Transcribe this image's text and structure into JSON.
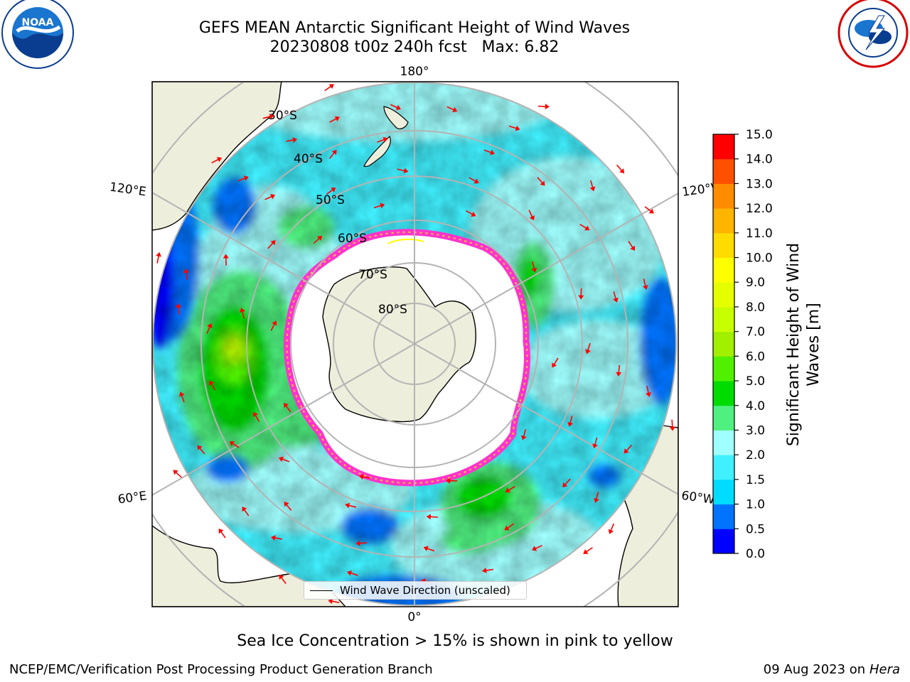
{
  "header": {
    "title_line1": "GEFS MEAN Antarctic Significant Height of Wind Waves",
    "title_line2": "20230808 t00z 240h fcst   Max: 6.82"
  },
  "logos": {
    "left": {
      "name": "noaa-logo-icon",
      "text": "NOAA",
      "ring_text": "NATIONAL OCEANIC AND ATMOSPHERIC ADMINISTRATION · U.S. DEPARTMENT OF COMMERCE"
    },
    "right": {
      "name": "nws-logo-icon",
      "ring_text": "NATIONAL WEATHER SERVICE"
    }
  },
  "map": {
    "projection": "south-polar-stereographic",
    "longitude_labels": {
      "top": "180°",
      "upper_left": "120°E",
      "upper_right": "120°W",
      "lower_left": "60°E",
      "lower_right": "60°W",
      "bottom": "0°"
    },
    "latitude_labels": [
      "30°S",
      "40°S",
      "50°S",
      "60°S",
      "70°S",
      "80°S"
    ],
    "legend_label": "Wind Wave Direction (unscaled)",
    "colors": {
      "land": "#eeeedc",
      "ice_edge": "#ff33cc",
      "arrow": "#ff0000",
      "grid": "#b4b4b4"
    }
  },
  "colorbar": {
    "label": "Significant Height of Wind Waves [m]",
    "label_line1": "Significant Height of Wind",
    "label_line2": "Waves [m]",
    "ticks": [
      "0.0",
      "0.5",
      "1.0",
      "1.5",
      "2.0",
      "3.0",
      "4.0",
      "5.0",
      "6.0",
      "7.0",
      "8.0",
      "9.0",
      "10.0",
      "11.0",
      "12.0",
      "13.0",
      "14.0",
      "15.0"
    ],
    "colors": [
      "#0000ff",
      "#0073ff",
      "#00dcff",
      "#40f0ff",
      "#a0ffff",
      "#50f080",
      "#00dc00",
      "#50f000",
      "#a0f000",
      "#c8ff00",
      "#e6ff00",
      "#ffff00",
      "#ffdc00",
      "#ffb400",
      "#ff8c00",
      "#ff5000",
      "#ff0000"
    ]
  },
  "caption": "Sea Ice Concentration > 15% is shown in pink to yellow",
  "footer": {
    "left": "NCEP/EMC/Verification Post Processing Product Generation Branch",
    "date": "09 Aug 2023 on",
    "host": "Hera"
  }
}
